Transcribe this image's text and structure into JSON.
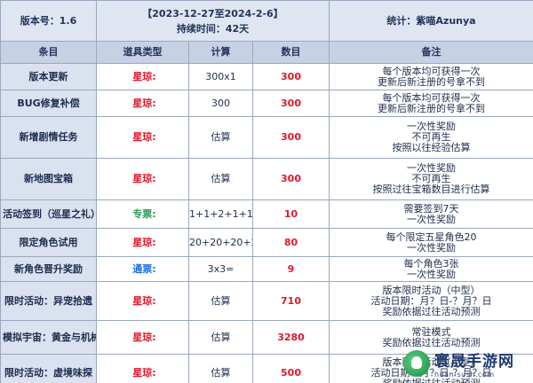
{
  "header": {
    "version": "版本号：1.6",
    "period": "【2023-12-27至2024-2-6】",
    "duration": "持续时间：42天",
    "stat_author": "统计：紫喵Azunya"
  },
  "columns": [
    "条目",
    "道具类型",
    "计算",
    "数目",
    "备注"
  ],
  "rows": [
    {
      "item": "版本更新",
      "type": "星琼:",
      "type_color": "red",
      "calc": "300x1",
      "count": "300",
      "notes": [
        "每个版本均可获得一次",
        "更新后新注册的号拿不到"
      ]
    },
    {
      "item": "BUG修复补偿",
      "type": "星琼:",
      "type_color": "red",
      "calc": "300",
      "count": "300",
      "notes": [
        "每个版本均可获得一次",
        "更新后新注册的号拿不到"
      ]
    },
    {
      "item": "新增剧情任务",
      "type": "星琼:",
      "type_color": "red",
      "calc": "估算",
      "count": "300",
      "notes": [
        "一次性奖励",
        "不可再生",
        "按照以往经验估算"
      ]
    },
    {
      "item": "新地图宝箱",
      "type": "星琼:",
      "type_color": "red",
      "calc": "估算",
      "count": "300",
      "notes": [
        "一次性奖励",
        "不可再生",
        "按照过往宝箱数目进行估算"
      ]
    },
    {
      "item": "活动签到（巡星之礼）",
      "type": "专票:",
      "type_color": "green",
      "calc": "1+1+2+1+1+1+3=",
      "count": "10",
      "notes": [
        "需要签到7天",
        "一次性奖励"
      ]
    },
    {
      "item": "限定角色试用",
      "type": "星琼:",
      "type_color": "red",
      "calc": "20+20+20+20=",
      "count": "80",
      "notes": [
        "每个限定五星角色20",
        "一次性奖励"
      ]
    },
    {
      "item": "新角色晋升奖励",
      "type": "通票:",
      "type_color": "blue",
      "calc": "3x3=",
      "count": "9",
      "notes": [
        "每个角色3张",
        "一次性奖励"
      ]
    },
    {
      "item": "限时活动：异宠拾遗",
      "type": "星琼:",
      "type_color": "red",
      "calc": "估算",
      "count": "710",
      "notes": [
        "版本限时活动（中型）",
        "活动日期：月？日-？月？日",
        "奖励依据过往活动预测"
      ]
    },
    {
      "item": "模拟宇宙：黄金与机械",
      "type": "星琼:",
      "type_color": "red",
      "calc": "估算",
      "count": "3280",
      "notes": [
        "常驻模式",
        "奖励依据过往活动预测"
      ]
    },
    {
      "item": "限时活动：虚境味探",
      "type": "星琼:",
      "type_color": "red",
      "calc": "估算",
      "count": "500",
      "notes": [
        "版本限时活动（小型）",
        "活动日期：月？日-？月？日",
        "奖励依据过往活动预测"
      ]
    }
  ],
  "watermark": {
    "title": "寰晟手游网",
    "url": "huan-sush.com"
  }
}
